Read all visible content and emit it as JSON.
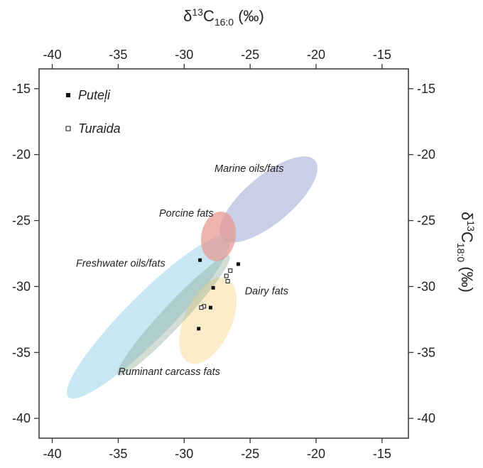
{
  "chart_data": {
    "type": "scatter",
    "x_axis": {
      "label_main": "δ",
      "label_sup": "13",
      "label_base": "C",
      "label_sub": "16:0",
      "label_unit": " (‰)",
      "lim": [
        -41,
        -13
      ],
      "ticks": [
        -40,
        -35,
        -30,
        -25,
        -20,
        -15
      ],
      "tick_labels": [
        "-40",
        "-35",
        "-30",
        "-25",
        "-20",
        "-15"
      ]
    },
    "y_axis": {
      "label_main": "δ",
      "label_sup": "13",
      "label_base": "C",
      "label_sub": "18:0",
      "label_unit": " (‰)",
      "lim": [
        -41.5,
        -13.5
      ],
      "ticks": [
        -15,
        -20,
        -25,
        -30,
        -35,
        -40
      ],
      "tick_labels": [
        "-15",
        "-20",
        "-25",
        "-30",
        "-35",
        "-40"
      ]
    },
    "grid": false,
    "legend_position": "top-left",
    "series": [
      {
        "name": "Puteļi",
        "marker": "filled-square",
        "color": "#111111",
        "points": [
          {
            "x": -28.8,
            "y": -28.0
          },
          {
            "x": -25.9,
            "y": -28.3
          },
          {
            "x": -27.8,
            "y": -30.1
          },
          {
            "x": -28.0,
            "y": -31.6
          },
          {
            "x": -28.9,
            "y": -33.2
          }
        ]
      },
      {
        "name": "Turaida",
        "marker": "open-square",
        "color": "#111111",
        "points": [
          {
            "x": -26.5,
            "y": -28.8
          },
          {
            "x": -26.8,
            "y": -29.2
          },
          {
            "x": -26.7,
            "y": -29.6
          },
          {
            "x": -28.5,
            "y": -31.5
          },
          {
            "x": -28.7,
            "y": -31.6
          }
        ]
      }
    ],
    "regions": [
      {
        "label": "Freshwater oils/fats",
        "color": "#bfe3f1",
        "opacity": 0.85,
        "cx": -32.7,
        "cy": -32.3,
        "rx": 8.6,
        "ry": 1.7,
        "angle_deg": 45
      },
      {
        "label": "Dairy fats",
        "color": "#fbe7b8",
        "opacity": 0.75,
        "cx": -28.2,
        "cy": -32.6,
        "rx": 3.5,
        "ry": 1.8,
        "angle_deg": 66
      },
      {
        "label": "Ruminant carcass fats",
        "color": "#7f9f88",
        "opacity": 0.35,
        "cx": -30.8,
        "cy": -32.2,
        "rx": 6.2,
        "ry": 0.85,
        "angle_deg": 47
      },
      {
        "label": "Marine oils/fats",
        "color": "#b9bddf",
        "opacity": 0.75,
        "cx": -23.6,
        "cy": -23.4,
        "rx": 4.6,
        "ry": 1.8,
        "angle_deg": 40
      },
      {
        "label": "Porcine fats",
        "color": "#e7958d",
        "opacity": 0.7,
        "cx": -27.4,
        "cy": -26.2,
        "rx": 1.9,
        "ry": 1.3,
        "angle_deg": 80
      }
    ],
    "region_labels": [
      {
        "text": "Marine oils/fats",
        "x": -27.7,
        "y": -21.3
      },
      {
        "text": "Porcine fats",
        "x": -31.9,
        "y": -24.7
      },
      {
        "text": "Freshwater oils/fats",
        "x": -38.2,
        "y": -28.5
      },
      {
        "text": "Dairy fats",
        "x": -25.4,
        "y": -30.6
      },
      {
        "text": "Ruminant carcass fats",
        "x": -35.0,
        "y": -36.7
      }
    ]
  }
}
